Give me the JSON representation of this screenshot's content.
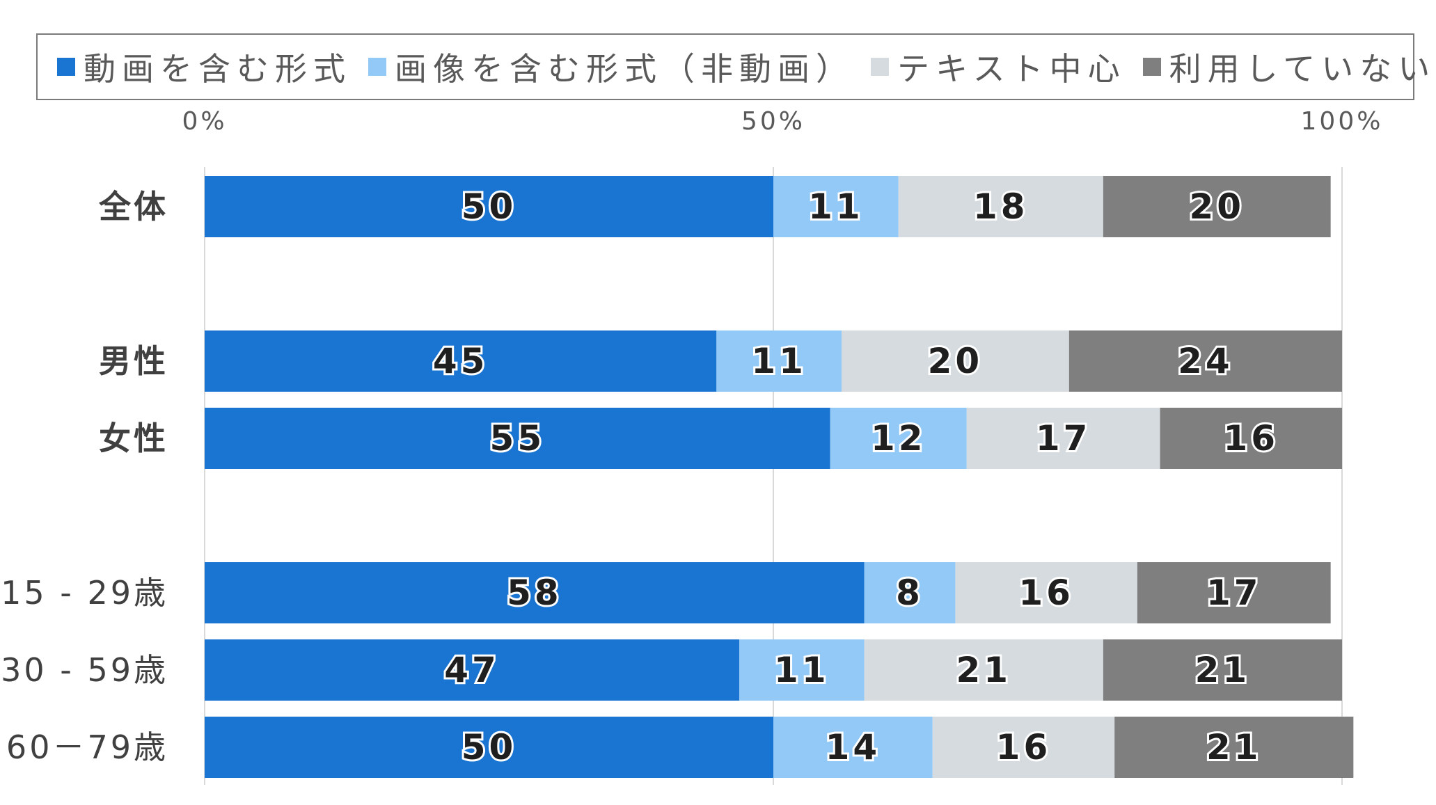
{
  "chart_data": {
    "type": "bar",
    "orientation": "horizontal",
    "stacked": true,
    "legend_position": "top",
    "grid": true,
    "xlim": [
      0,
      100
    ],
    "x_ticks": [
      "0%",
      "50%",
      "100%"
    ],
    "categories": [
      "全体",
      "男性",
      "女性",
      "15 - 29歳",
      "30 - 59歳",
      "60－79歳"
    ],
    "series": [
      {
        "name": "動画を含む形式",
        "color": "#1a75d2",
        "values": [
          50,
          45,
          55,
          58,
          47,
          50
        ]
      },
      {
        "name": "画像を含む形式（非動画）",
        "color": "#92c9f7",
        "values": [
          11,
          11,
          12,
          8,
          11,
          14
        ]
      },
      {
        "name": "テキスト中心",
        "color": "#d5dbdf",
        "values": [
          18,
          20,
          17,
          16,
          21,
          16
        ]
      },
      {
        "name": "利用していない",
        "color": "#7f7f7f",
        "values": [
          20,
          24,
          16,
          17,
          21,
          21
        ]
      }
    ]
  }
}
